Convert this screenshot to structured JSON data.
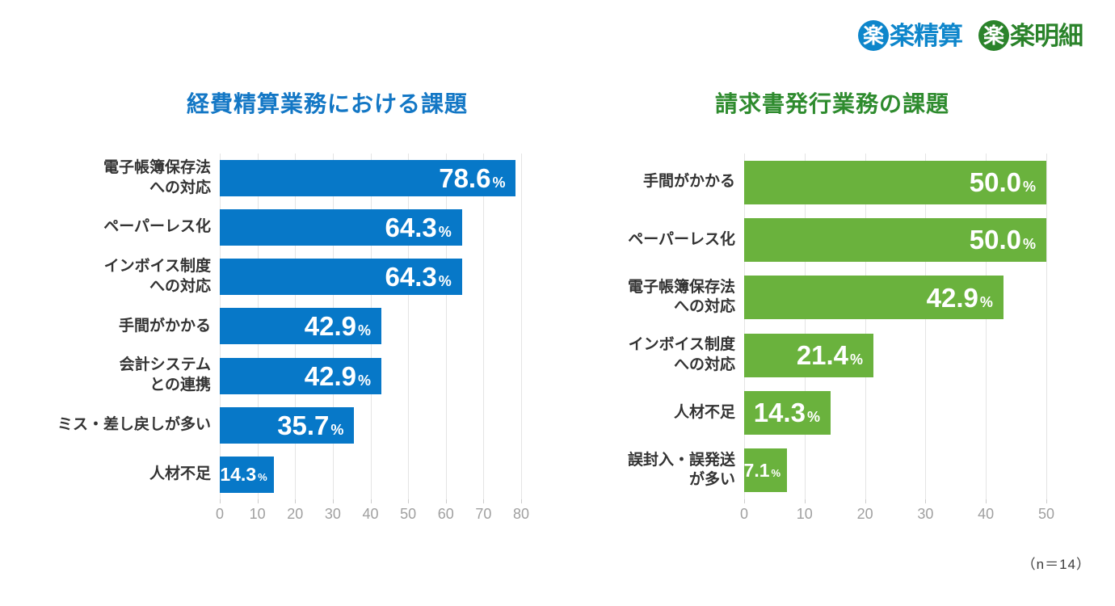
{
  "page": {
    "background": "#ffffff"
  },
  "header": {
    "logos": [
      {
        "full_name": "楽楽精算",
        "circle_char": "楽",
        "rest": "楽精算",
        "color": "#0e86cb"
      },
      {
        "full_name": "楽楽明細",
        "circle_char": "楽",
        "rest": "楽明細",
        "color": "#2b832b"
      }
    ]
  },
  "footnote": "（n＝14）",
  "chart_data": [
    {
      "type": "bar",
      "orientation": "horizontal",
      "title": "経費精算業務における課題",
      "title_color": "#1377c5",
      "bar_color": "#0778c8",
      "unit": "%",
      "value_text_color": "#ffffff",
      "categories": [
        [
          "電子帳簿保存法",
          "への対応"
        ],
        [
          "ペーパーレス化"
        ],
        [
          "インボイス制度",
          "への対応"
        ],
        [
          "手間がかかる"
        ],
        [
          "会計システム",
          "との連携"
        ],
        [
          "ミス・差し戻しが多い"
        ],
        [
          "人材不足"
        ]
      ],
      "values": [
        78.6,
        64.3,
        64.3,
        42.9,
        42.9,
        35.7,
        14.3
      ],
      "xlim": [
        0,
        80
      ],
      "xticks": [
        0,
        10,
        20,
        30,
        40,
        50,
        60,
        70,
        80
      ],
      "grid": true
    },
    {
      "type": "bar",
      "orientation": "horizontal",
      "title": "請求書発行業務の課題",
      "title_color": "#2e8b2e",
      "bar_color": "#6ab23d",
      "unit": "%",
      "value_text_color": "#ffffff",
      "categories": [
        [
          "手間がかかる"
        ],
        [
          "ペーパーレス化"
        ],
        [
          "電子帳簿保存法",
          "への対応"
        ],
        [
          "インボイス制度",
          "への対応"
        ],
        [
          "人材不足"
        ],
        [
          "誤封入・誤発送",
          "が多い"
        ]
      ],
      "values": [
        50.0,
        50.0,
        42.9,
        21.4,
        14.3,
        7.1
      ],
      "xlim": [
        0,
        50
      ],
      "xticks": [
        0,
        10,
        20,
        30,
        40,
        50
      ],
      "grid": true
    }
  ]
}
